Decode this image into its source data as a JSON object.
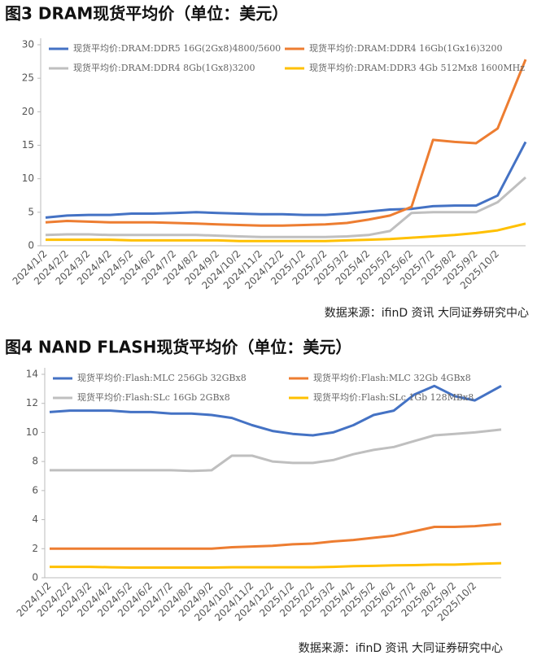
{
  "chart_data": [
    {
      "type": "line",
      "title": "图3  DRAM现货平均价（单位：美元）",
      "source": "数据来源：ifinD 资讯    大同证券研究中心",
      "categories": [
        "2024/1/2",
        "2024/2/2",
        "2024/3/2",
        "2024/4/2",
        "2024/5/2",
        "2024/6/2",
        "2024/7/2",
        "2024/8/2",
        "2024/9/2",
        "2024/10/2",
        "2024/11/2",
        "2024/12/2",
        "2025/1/2",
        "2025/2/2",
        "2025/3/2",
        "2025/4/2",
        "2025/5/2",
        "2025/6/2",
        "2025/7/2",
        "2025/8/2",
        "2025/9/2",
        "2025/10/2",
        null
      ],
      "ylim": [
        0,
        30
      ],
      "yticks": [
        0,
        5,
        10,
        15,
        20,
        25,
        30
      ],
      "grid": false,
      "series": [
        {
          "name": "现货平均价:DRAM:DDR5 16G(2Gx8)4800/5600",
          "color": "#4472c4",
          "values": [
            4.2,
            4.5,
            4.6,
            4.6,
            4.8,
            4.8,
            4.9,
            5.0,
            4.9,
            4.8,
            4.7,
            4.7,
            4.6,
            4.6,
            4.8,
            5.1,
            5.4,
            5.5,
            5.9,
            6.0,
            6.0,
            7.5,
            15.5
          ]
        },
        {
          "name": "现货平均价:DRAM:DDR4 16Gb(1Gx16)3200",
          "color": "#ed7d31",
          "values": [
            3.5,
            3.7,
            3.6,
            3.5,
            3.5,
            3.5,
            3.4,
            3.3,
            3.2,
            3.1,
            3.0,
            3.0,
            3.1,
            3.2,
            3.4,
            3.9,
            4.5,
            5.8,
            15.8,
            15.5,
            15.3,
            17.5,
            27.8
          ]
        },
        {
          "name": "现货平均价:DRAM:DDR4 8Gb(1Gx8)3200",
          "color": "#bfbfbf",
          "values": [
            1.6,
            1.7,
            1.7,
            1.6,
            1.6,
            1.6,
            1.6,
            1.6,
            1.5,
            1.4,
            1.3,
            1.3,
            1.3,
            1.3,
            1.4,
            1.6,
            2.2,
            4.9,
            5.0,
            5.0,
            5.0,
            6.5,
            10.2
          ]
        },
        {
          "name": "现货平均价:DRAM:DDR3 4Gb 512Mx8 1600MHz",
          "color": "#ffc000",
          "values": [
            0.9,
            0.9,
            0.9,
            0.9,
            0.8,
            0.8,
            0.8,
            0.8,
            0.8,
            0.7,
            0.7,
            0.7,
            0.7,
            0.7,
            0.8,
            0.9,
            1.0,
            1.2,
            1.4,
            1.6,
            1.9,
            2.3,
            3.3
          ]
        }
      ]
    },
    {
      "type": "line",
      "title": "图4  NAND FLASH现货平均价（单位：美元）",
      "source": "数据来源：ifinD 资讯    大同证券研究中心",
      "categories": [
        "2024/1/2",
        "2024/2/2",
        "2024/3/2",
        "2024/4/2",
        "2024/5/2",
        "2024/6/2",
        "2024/7/2",
        "2024/8/2",
        "2024/9/2",
        "2024/10/2",
        "2024/11/2",
        "2024/12/2",
        "2025/1/2",
        "2025/2/2",
        "2025/3/2",
        "2025/4/2",
        "2025/5/2",
        "2025/6/2",
        "2025/7/2",
        "2025/8/2",
        "2025/9/2",
        "2025/10/2",
        null
      ],
      "ylim": [
        0,
        14
      ],
      "yticks": [
        0,
        2,
        4,
        6,
        8,
        10,
        12,
        14
      ],
      "grid": false,
      "series": [
        {
          "name": "现货平均价:Flash:MLC 256Gb 32GBx8",
          "color": "#4472c4",
          "values": [
            11.4,
            11.5,
            11.5,
            11.5,
            11.4,
            11.4,
            11.3,
            11.3,
            11.2,
            11.0,
            10.5,
            10.1,
            9.9,
            9.8,
            10.0,
            10.5,
            11.2,
            11.5,
            12.6,
            13.2,
            12.5,
            12.2,
            13.2
          ]
        },
        {
          "name": "现货平均价:Flash:MLC 32Gb 4GBx8",
          "color": "#ed7d31",
          "values": [
            2.0,
            2.0,
            2.0,
            2.0,
            2.0,
            2.0,
            2.0,
            2.0,
            2.0,
            2.1,
            2.15,
            2.2,
            2.3,
            2.35,
            2.5,
            2.6,
            2.75,
            2.9,
            3.2,
            3.5,
            3.5,
            3.55,
            3.7
          ]
        },
        {
          "name": "现货平均价:Flash:SLc 16Gb 2GBx8",
          "color": "#bfbfbf",
          "values": [
            7.4,
            7.4,
            7.4,
            7.4,
            7.4,
            7.4,
            7.4,
            7.35,
            7.4,
            8.4,
            8.4,
            8.0,
            7.9,
            7.9,
            8.1,
            8.5,
            8.8,
            9.0,
            9.4,
            9.8,
            9.9,
            10.0,
            10.2
          ]
        },
        {
          "name": "现货平均价:Flash:SLc 1Gb 128MBx8",
          "color": "#ffc000",
          "values": [
            0.75,
            0.75,
            0.75,
            0.72,
            0.7,
            0.7,
            0.7,
            0.7,
            0.7,
            0.72,
            0.72,
            0.72,
            0.72,
            0.72,
            0.75,
            0.8,
            0.82,
            0.85,
            0.87,
            0.9,
            0.9,
            0.95,
            1.0
          ]
        }
      ]
    }
  ]
}
